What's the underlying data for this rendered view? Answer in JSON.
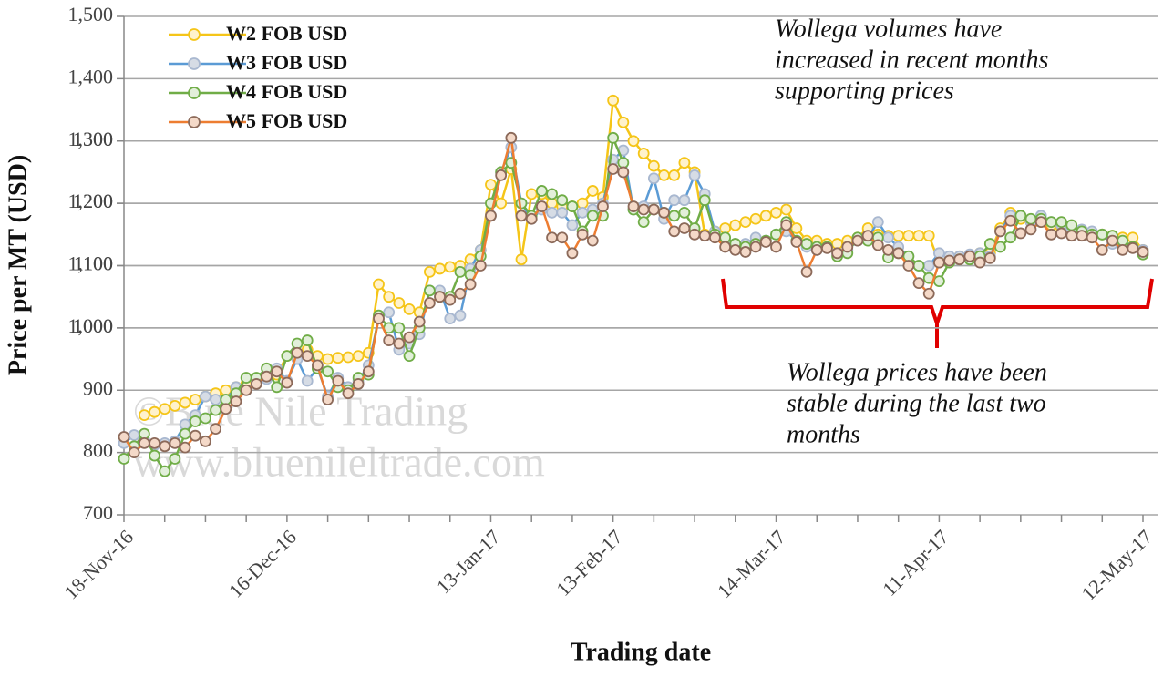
{
  "chart_data": {
    "type": "line",
    "x_label": "Trading date",
    "y_label": "Price per MT (USD)",
    "ylim": [
      700,
      1500
    ],
    "yticks": [
      700,
      800,
      900,
      1000,
      1100,
      1200,
      1300,
      {
        "value": 1000,
        "label": "1,000"
      },
      {
        "value": 1100,
        "label": "1,100"
      },
      {
        "value": 1200,
        "label": "1,200"
      },
      {
        "value": 1300,
        "label": "1,300"
      },
      {
        "value": 1400,
        "label": "1,400"
      },
      {
        "value": 1500,
        "label": "1,500"
      }
    ],
    "grid": true,
    "legend": "top-left",
    "watermark": [
      "©Blue Nile Trading",
      "www.bluenileltrade.com"
    ],
    "annotations": [
      {
        "lines": [
          "Wollega volumes have",
          "increased in recent months",
          "supporting prices"
        ]
      },
      {
        "lines": [
          "Wollega prices have been",
          "stable during the last two",
          "months"
        ]
      }
    ],
    "categories": [
      "18-Nov-16",
      null,
      null,
      null,
      null,
      null,
      null,
      null,
      null,
      null,
      null,
      null,
      null,
      null,
      null,
      null,
      "16-Dec-16",
      null,
      null,
      null,
      null,
      null,
      null,
      null,
      null,
      null,
      null,
      null,
      null,
      null,
      null,
      null,
      null,
      null,
      null,
      null,
      "13-Jan-17",
      null,
      null,
      null,
      null,
      null,
      null,
      null,
      null,
      null,
      null,
      null,
      "13-Feb-17",
      null,
      null,
      null,
      null,
      null,
      null,
      null,
      null,
      null,
      null,
      null,
      null,
      null,
      null,
      null,
      "14-Mar-17",
      null,
      null,
      null,
      null,
      null,
      null,
      null,
      null,
      null,
      null,
      null,
      null,
      null,
      null,
      null,
      "11-Apr-17",
      null,
      null,
      null,
      null,
      null,
      null,
      null,
      null,
      null,
      null,
      null,
      null,
      null,
      null,
      null,
      null,
      null,
      null,
      null,
      "12-May-17"
    ],
    "series": [
      {
        "name": "W2 FOB USD",
        "color": "#f5c518",
        "marker_fill": "#fff2cc",
        "marker_stroke": "#f5c518",
        "values": [
          null,
          null,
          860,
          865,
          870,
          875,
          880,
          885,
          890,
          895,
          900,
          905,
          910,
          915,
          920,
          925,
          955,
          960,
          965,
          955,
          950,
          952,
          953,
          955,
          960,
          1070,
          1050,
          1040,
          1030,
          1025,
          1090,
          1095,
          1098,
          1100,
          1110,
          1125,
          1230,
          1200,
          1255,
          1110,
          1215,
          1215,
          1200,
          1195,
          1195,
          1200,
          1220,
          1210,
          1365,
          1330,
          1300,
          1280,
          1260,
          1245,
          1245,
          1265,
          1250,
          1150,
          1155,
          1160,
          1165,
          1170,
          1175,
          1180,
          1185,
          1190,
          1160,
          1140,
          1140,
          1135,
          1135,
          1140,
          1145,
          1160,
          1150,
          1148,
          1148,
          1148,
          1148,
          1148,
          1105,
          1110,
          1115,
          1115,
          1120,
          1120,
          1160,
          1185,
          1175,
          1170,
          1170,
          1165,
          1160,
          1158,
          1155,
          1152,
          1150,
          1148,
          1145,
          1145,
          1125
        ]
      },
      {
        "name": "W3 FOB USD",
        "color": "#5b9bd5",
        "marker_fill": "#d6dce5",
        "marker_stroke": "#a9b8d0",
        "values": [
          815,
          828,
          820,
          812,
          815,
          818,
          845,
          860,
          890,
          885,
          885,
          905,
          900,
          912,
          918,
          935,
          915,
          950,
          915,
          935,
          890,
          920,
          905,
          915,
          940,
          1015,
          1025,
          965,
          975,
          990,
          1060,
          1060,
          1015,
          1020,
          1095,
          1125,
          1180,
          1250,
          1290,
          1200,
          1175,
          1190,
          1185,
          1185,
          1165,
          1185,
          1190,
          1200,
          1270,
          1285,
          1190,
          1195,
          1240,
          1175,
          1205,
          1205,
          1245,
          1215,
          1155,
          1140,
          1135,
          1135,
          1145,
          1140,
          1150,
          1155,
          1140,
          1130,
          1125,
          1130,
          1118,
          1125,
          1140,
          1145,
          1170,
          1145,
          1130,
          1115,
          1100,
          1100,
          1120,
          1115,
          1115,
          1118,
          1120,
          1115,
          1155,
          1180,
          1180,
          1170,
          1180,
          1170,
          1165,
          1160,
          1158,
          1155,
          1150,
          1135,
          1130,
          1130,
          1125
        ]
      },
      {
        "name": "W4 FOB USD",
        "color": "#70ad47",
        "marker_fill": "#e2efda",
        "marker_stroke": "#70ad47",
        "values": [
          790,
          810,
          830,
          795,
          770,
          790,
          830,
          850,
          855,
          868,
          885,
          895,
          920,
          920,
          935,
          905,
          955,
          975,
          980,
          935,
          930,
          905,
          900,
          920,
          925,
          1020,
          1000,
          1000,
          955,
          1000,
          1060,
          1050,
          1050,
          1090,
          1085,
          1115,
          1200,
          1250,
          1265,
          1200,
          1180,
          1220,
          1215,
          1205,
          1195,
          1155,
          1180,
          1180,
          1305,
          1265,
          1190,
          1170,
          1190,
          1185,
          1180,
          1185,
          1160,
          1205,
          1150,
          1145,
          1135,
          1130,
          1135,
          1140,
          1150,
          1170,
          1140,
          1135,
          1130,
          1130,
          1115,
          1120,
          1145,
          1140,
          1145,
          1113,
          1120,
          1115,
          1100,
          1080,
          1075,
          1105,
          1110,
          1110,
          1115,
          1135,
          1130,
          1145,
          1180,
          1175,
          1175,
          1170,
          1170,
          1165,
          1155,
          1150,
          1150,
          1148,
          1140,
          1130,
          1118
        ]
      },
      {
        "name": "W5 FOB USD",
        "color": "#ed7d31",
        "marker_fill": "#f4d9c8",
        "marker_stroke": "#8c6a5a",
        "values": [
          825,
          800,
          815,
          815,
          810,
          815,
          808,
          827,
          818,
          838,
          870,
          882,
          900,
          910,
          922,
          930,
          912,
          960,
          955,
          940,
          885,
          915,
          895,
          910,
          930,
          1015,
          980,
          975,
          985,
          1010,
          1040,
          1050,
          1045,
          1055,
          1070,
          1100,
          1180,
          1245,
          1305,
          1180,
          1175,
          1195,
          1145,
          1145,
          1120,
          1150,
          1140,
          1195,
          1255,
          1250,
          1195,
          1190,
          1190,
          1185,
          1155,
          1160,
          1150,
          1148,
          1145,
          1130,
          1125,
          1122,
          1130,
          1138,
          1130,
          1165,
          1138,
          1090,
          1125,
          1128,
          1120,
          1130,
          1140,
          1148,
          1133,
          1125,
          1120,
          1100,
          1072,
          1055,
          1105,
          1108,
          1110,
          1115,
          1105,
          1112,
          1155,
          1172,
          1152,
          1158,
          1170,
          1150,
          1152,
          1148,
          1148,
          1145,
          1125,
          1140,
          1125,
          1128,
          1122
        ]
      }
    ]
  }
}
